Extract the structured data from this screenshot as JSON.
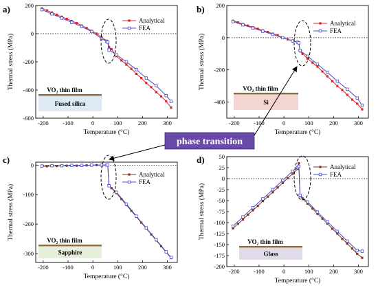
{
  "chart_data": [
    {
      "type": "line",
      "panel": "a)",
      "xlabel": "Temperature (°C)",
      "ylabel": "Thermal stress (MPa)",
      "xlim": [
        -230,
        340
      ],
      "ylim": [
        -600,
        200
      ],
      "xticks": [
        -200,
        -100,
        0,
        100,
        200,
        300
      ],
      "yticks": [
        -600,
        -400,
        -200,
        0,
        200
      ],
      "film_label": "VO₂ thin film",
      "substrate_label": "Fused silica",
      "substrate_color": "#dde9f4",
      "series": [
        {
          "name": "Analytical",
          "x": [
            -205,
            -185,
            -165,
            -145,
            -125,
            -105,
            -85,
            -65,
            -45,
            -25,
            -5,
            15,
            35,
            55,
            60,
            65,
            75,
            95,
            115,
            135,
            155,
            175,
            195,
            215,
            235,
            255,
            275,
            295,
            315
          ],
          "y": [
            180,
            165,
            150,
            135,
            120,
            105,
            90,
            75,
            58,
            40,
            20,
            0,
            -25,
            -50,
            -60,
            -95,
            -110,
            -160,
            -190,
            -220,
            -250,
            -285,
            -315,
            -350,
            -380,
            -415,
            -445,
            -480,
            -525
          ]
        },
        {
          "name": "FEA",
          "x": [
            -205,
            -165,
            -125,
            -85,
            -45,
            -5,
            35,
            55,
            60,
            65,
            95,
            135,
            175,
            215,
            255,
            295,
            315
          ],
          "y": [
            170,
            140,
            110,
            80,
            50,
            15,
            -35,
            -55,
            -60,
            -115,
            -150,
            -200,
            -255,
            -315,
            -370,
            -440,
            -480
          ]
        }
      ]
    },
    {
      "type": "line",
      "panel": "b)",
      "xlabel": "Temperature (°C)",
      "ylabel": "Thermal stress (MPa)",
      "xlim": [
        -230,
        340
      ],
      "ylim": [
        -500,
        200
      ],
      "xticks": [
        -200,
        -100,
        0,
        100,
        200,
        300
      ],
      "yticks": [
        -400,
        -200,
        0,
        200
      ],
      "film_label": "VO₂ thin film",
      "substrate_label": "Si",
      "substrate_color": "#f3d5d2",
      "series": [
        {
          "name": "Analytical",
          "x": [
            -205,
            -185,
            -165,
            -145,
            -125,
            -105,
            -85,
            -65,
            -45,
            -25,
            -5,
            15,
            35,
            55,
            60,
            65,
            75,
            95,
            115,
            135,
            155,
            175,
            195,
            215,
            235,
            255,
            275,
            295,
            315
          ],
          "y": [
            105,
            95,
            85,
            75,
            65,
            55,
            45,
            35,
            25,
            15,
            0,
            -10,
            -20,
            -30,
            -35,
            -85,
            -100,
            -130,
            -155,
            -180,
            -210,
            -240,
            -270,
            -300,
            -325,
            -355,
            -385,
            -410,
            -445
          ]
        },
        {
          "name": "FEA",
          "x": [
            -205,
            -165,
            -125,
            -85,
            -45,
            -5,
            35,
            55,
            60,
            65,
            95,
            135,
            175,
            215,
            255,
            295,
            315
          ],
          "y": [
            100,
            80,
            60,
            40,
            20,
            0,
            -20,
            -28,
            -32,
            -80,
            -115,
            -165,
            -215,
            -270,
            -320,
            -375,
            -420
          ]
        }
      ]
    },
    {
      "type": "line",
      "panel": "c)",
      "xlabel": "Temperature (°C)",
      "ylabel": "Thermal stress (MPa)",
      "xlim": [
        -230,
        340
      ],
      "ylim": [
        -330,
        10
      ],
      "xticks": [
        -200,
        -100,
        0,
        100,
        200,
        300
      ],
      "yticks": [
        -300,
        -200,
        -100,
        0
      ],
      "film_label": "VO₂ thin film",
      "substrate_label": "Sapphire",
      "substrate_color": "#e6efd9",
      "series": [
        {
          "name": "Analytical",
          "x": [
            -205,
            -185,
            -165,
            -145,
            -125,
            -105,
            -85,
            -65,
            -45,
            -25,
            -5,
            15,
            35,
            55,
            60,
            65,
            75,
            95,
            115,
            135,
            155,
            175,
            195,
            215,
            235,
            255,
            275,
            295,
            315
          ],
          "y": [
            -4,
            -4,
            -3,
            -3,
            -3,
            -2,
            -2,
            -2,
            -1,
            -1,
            0,
            0,
            0,
            0,
            0,
            -68,
            -78,
            -95,
            -115,
            -135,
            -155,
            -175,
            -195,
            -215,
            -235,
            -255,
            -275,
            -295,
            -315
          ]
        },
        {
          "name": "FEA",
          "x": [
            -205,
            -165,
            -125,
            -85,
            -45,
            -5,
            35,
            55,
            60,
            65,
            95,
            135,
            175,
            215,
            255,
            295,
            315
          ],
          "y": [
            -3,
            -2,
            -2,
            -1,
            -1,
            0,
            0,
            0,
            0,
            -70,
            -92,
            -132,
            -173,
            -213,
            -253,
            -294,
            -313
          ]
        }
      ]
    },
    {
      "type": "line",
      "panel": "d)",
      "xlabel": "Temperature (°C)",
      "ylabel": "Thermal stress (MPa)",
      "xlim": [
        -230,
        340
      ],
      "ylim": [
        -200,
        50
      ],
      "xticks": [
        -200,
        -100,
        0,
        100,
        200,
        300
      ],
      "yticks": [
        -200,
        -175,
        -150,
        -125,
        -100,
        -75,
        -50,
        -25,
        0,
        25,
        50
      ],
      "film_label": "VO₂ thin film",
      "substrate_label": "Glass",
      "substrate_color": "#e2dcea",
      "series": [
        {
          "name": "Analytical",
          "x": [
            -205,
            -185,
            -165,
            -145,
            -125,
            -105,
            -85,
            -65,
            -45,
            -25,
            -5,
            15,
            35,
            55,
            60,
            65,
            75,
            95,
            115,
            135,
            155,
            175,
            195,
            215,
            235,
            255,
            275,
            295,
            315
          ],
          "y": [
            -113,
            -103,
            -93,
            -82,
            -72,
            -62,
            -51,
            -41,
            -31,
            -20,
            -10,
            1,
            11,
            22,
            35,
            -40,
            -45,
            -57,
            -68,
            -80,
            -91,
            -102,
            -114,
            -125,
            -137,
            -148,
            -159,
            -171,
            -180
          ]
        },
        {
          "name": "FEA",
          "x": [
            -205,
            -165,
            -125,
            -85,
            -45,
            -5,
            35,
            55,
            60,
            65,
            95,
            135,
            175,
            215,
            255,
            295,
            315
          ],
          "y": [
            -108,
            -87,
            -66,
            -46,
            -25,
            -4,
            17,
            25,
            28,
            -38,
            -53,
            -76,
            -98,
            -120,
            -142,
            -163,
            -165
          ]
        }
      ]
    }
  ],
  "legend": {
    "analytical": "Analytical",
    "fea": "FEA"
  },
  "callout": {
    "text": "phase transition",
    "bg_color": "#6a4aa8"
  },
  "colors": {
    "analytical": "#e02020",
    "analytical_cd": "#7b3a1e",
    "fea": "#4a4ac8",
    "film_bar": "#8b6a3e"
  }
}
